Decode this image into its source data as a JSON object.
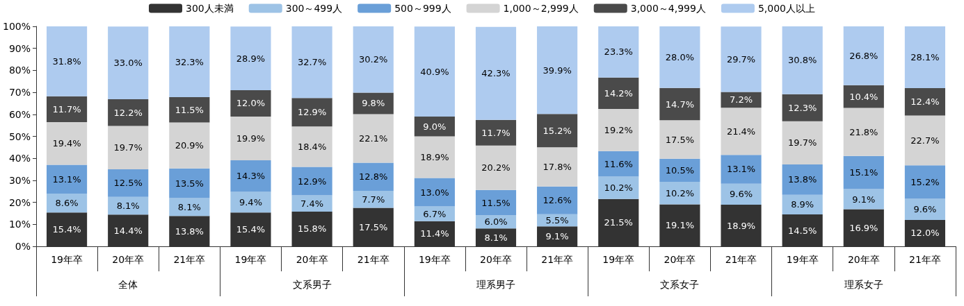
{
  "chart_data": {
    "type": "bar",
    "stacked": true,
    "legend": "top",
    "grid": false,
    "categories": [
      "19年卒",
      "20年卒",
      "21年卒",
      "19年卒",
      "20年卒",
      "21年卒",
      "19年卒",
      "20年卒",
      "21年卒",
      "19年卒",
      "20年卒",
      "21年卒",
      "19年卒",
      "20年卒",
      "21年卒"
    ],
    "annotations": [
      "全体",
      "文系男子",
      "理系男子",
      "文系女子",
      "理系女子"
    ],
    "ylim": [
      0,
      100
    ],
    "yticks": [
      {
        "value": 0,
        "label": "0%"
      },
      {
        "value": 10,
        "label": "10%"
      },
      {
        "value": 20,
        "label": "20%"
      },
      {
        "value": 30,
        "label": "30%"
      },
      {
        "value": 40,
        "label": "40%"
      },
      {
        "value": 50,
        "label": "50%"
      },
      {
        "value": 60,
        "label": "60%"
      },
      {
        "value": 70,
        "label": "70%"
      },
      {
        "value": 80,
        "label": "80%"
      },
      {
        "value": 90,
        "label": "90%"
      },
      {
        "value": 100,
        "label": "100%"
      }
    ],
    "series": [
      {
        "name": "300人未満",
        "color": "#333333",
        "values": [
          15.4,
          14.4,
          13.8,
          15.4,
          15.8,
          17.5,
          11.4,
          8.1,
          9.1,
          21.5,
          19.1,
          18.9,
          14.5,
          16.9,
          12.0
        ],
        "value_labels": [
          "15.4%",
          "14.4%",
          "13.8%",
          "15.4%",
          "15.8%",
          "17.5%",
          "11.4%",
          "8.1%",
          "9.1%",
          "21.5%",
          "19.1%",
          "18.9%",
          "14.5%",
          "16.9%",
          "12.0%"
        ]
      },
      {
        "name": "300～499人",
        "color": "#9dc3e6",
        "values": [
          8.6,
          8.1,
          8.1,
          9.4,
          7.4,
          7.7,
          6.7,
          6.0,
          5.5,
          10.2,
          10.2,
          9.6,
          8.9,
          9.1,
          9.6
        ],
        "value_labels": [
          "8.6%",
          "8.1%",
          "8.1%",
          "9.4%",
          "7.4%",
          "7.7%",
          "6.7%",
          "6.0%",
          "5.5%",
          "10.2%",
          "10.2%",
          "9.6%",
          "8.9%",
          "9.1%",
          "9.6%"
        ]
      },
      {
        "name": "500～999人",
        "color": "#6a9fd8",
        "values": [
          13.1,
          12.5,
          13.5,
          14.3,
          12.9,
          12.8,
          13.0,
          11.5,
          12.6,
          11.6,
          10.5,
          13.1,
          13.8,
          15.1,
          15.2
        ],
        "value_labels": [
          "13.1%",
          "12.5%",
          "13.5%",
          "14.3%",
          "12.9%",
          "12.8%",
          "13.0%",
          "11.5%",
          "12.6%",
          "11.6%",
          "10.5%",
          "13.1%",
          "13.8%",
          "15.1%",
          "15.2%"
        ]
      },
      {
        "name": "1,000～2,999人",
        "color": "#d4d4d4",
        "values": [
          19.4,
          19.7,
          20.9,
          19.9,
          18.4,
          22.1,
          18.9,
          20.2,
          17.8,
          19.2,
          17.5,
          21.4,
          19.7,
          21.8,
          22.7
        ],
        "value_labels": [
          "19.4%",
          "19.7%",
          "20.9%",
          "19.9%",
          "18.4%",
          "22.1%",
          "18.9%",
          "20.2%",
          "17.8%",
          "19.2%",
          "17.5%",
          "21.4%",
          "19.7%",
          "21.8%",
          "22.7%"
        ]
      },
      {
        "name": "3,000～4,999人",
        "color": "#4a4a4a",
        "values": [
          11.7,
          12.2,
          11.5,
          12.0,
          12.9,
          9.8,
          9.0,
          11.7,
          15.2,
          14.2,
          14.7,
          7.2,
          12.3,
          10.4,
          12.4
        ],
        "value_labels": [
          "11.7%",
          "12.2%",
          "11.5%",
          "12.0%",
          "12.9%",
          "9.8%",
          "9.0%",
          "11.7%",
          "15.2%",
          "14.2%",
          "14.7%",
          "7.2%",
          "12.3%",
          "10.4%",
          "12.4%"
        ]
      },
      {
        "name": "5,000人以上",
        "color": "#aecbef",
        "values": [
          31.8,
          33.0,
          32.3,
          28.9,
          32.7,
          30.2,
          40.9,
          42.3,
          39.9,
          23.3,
          28.0,
          29.7,
          30.8,
          26.8,
          28.1
        ],
        "value_labels": [
          "31.8%",
          "33.0%",
          "32.3%",
          "28.9%",
          "32.7%",
          "30.2%",
          "40.9%",
          "42.3%",
          "39.9%",
          "23.3%",
          "28.0%",
          "29.7%",
          "30.8%",
          "26.8%",
          "28.1%"
        ]
      }
    ]
  }
}
